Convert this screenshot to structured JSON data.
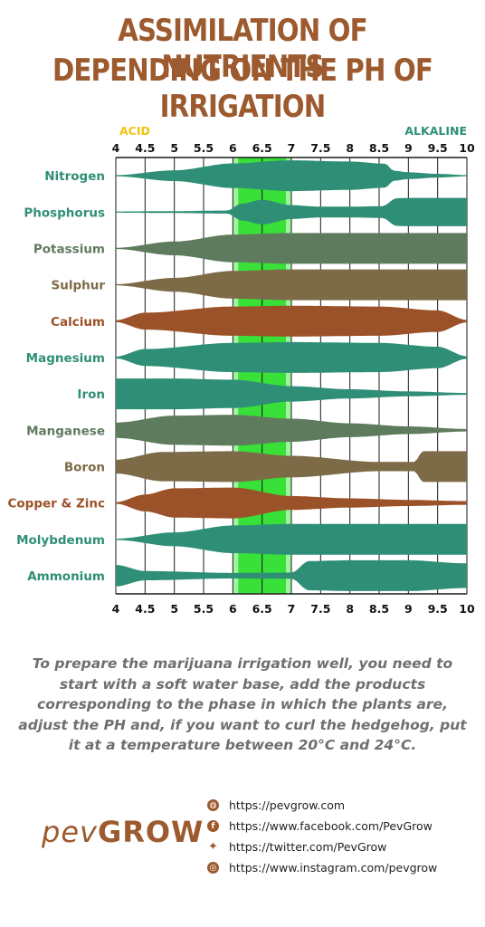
{
  "title_line1": "ASSIMILATION OF NUTRIENTS",
  "title_line2": "DEPENDING ON THE PH OF IRRIGATION",
  "chart_data": {
    "type": "area",
    "x_label_left": "ACID",
    "x_label_right": "ALKALINE",
    "xlim": [
      4,
      10
    ],
    "ticks": [
      "4",
      "4.5",
      "5",
      "5.5",
      "6",
      "6.5",
      "7",
      "7.5",
      "8",
      "8.5",
      "9",
      "9.5",
      "10"
    ],
    "highlight_range": [
      6,
      7
    ],
    "nutrients": [
      {
        "name": "Nitrogen",
        "color": "#2f8f76",
        "label_color": "#2f8f76",
        "x": [
          4,
          5,
          6,
          7,
          8,
          8.6,
          8.75,
          9,
          9.5,
          10
        ],
        "w": [
          0.04,
          0.35,
          0.8,
          1,
          0.92,
          0.78,
          0.33,
          0.22,
          0.12,
          0.04
        ]
      },
      {
        "name": "Phosphorus",
        "color": "#2f8f76",
        "label_color": "#2f8f76",
        "x": [
          4,
          5,
          5.9,
          6.15,
          6.5,
          7,
          7.5,
          8,
          8.55,
          8.8,
          9,
          10
        ],
        "w": [
          0.04,
          0.06,
          0.1,
          0.55,
          0.8,
          0.45,
          0.35,
          0.35,
          0.38,
          0.9,
          0.92,
          0.92
        ]
      },
      {
        "name": "Potassium",
        "color": "#5f7b5e",
        "label_color": "#5f7b5e",
        "x": [
          4,
          5,
          6,
          7,
          8,
          9,
          10
        ],
        "w": [
          0.04,
          0.45,
          0.9,
          1,
          1,
          1,
          1
        ]
      },
      {
        "name": "Sulphur",
        "color": "#7d6a47",
        "label_color": "#7d6a47",
        "x": [
          4,
          5,
          6,
          7,
          8,
          9,
          10
        ],
        "w": [
          0.04,
          0.45,
          0.9,
          1,
          1,
          1,
          1
        ]
      },
      {
        "name": "Calcium",
        "color": "#9c5228",
        "label_color": "#9c5228",
        "x": [
          4,
          4.5,
          6,
          7,
          8.5,
          9.5,
          10
        ],
        "w": [
          0.06,
          0.55,
          0.95,
          1,
          0.95,
          0.7,
          0.08
        ]
      },
      {
        "name": "Magnesium",
        "color": "#2f8f76",
        "label_color": "#2f8f76",
        "x": [
          4,
          4.5,
          6,
          7,
          8.5,
          9.5,
          10
        ],
        "w": [
          0.06,
          0.55,
          0.95,
          1,
          0.95,
          0.7,
          0.08
        ]
      },
      {
        "name": "Iron",
        "color": "#2f8f76",
        "label_color": "#2f8f76",
        "x": [
          4,
          5,
          6,
          7,
          8,
          9,
          10
        ],
        "w": [
          1,
          1,
          0.92,
          0.5,
          0.3,
          0.16,
          0.06
        ]
      },
      {
        "name": "Manganese",
        "color": "#5f7b5e",
        "label_color": "#5f7b5e",
        "x": [
          4,
          5,
          6,
          7,
          8,
          9,
          10
        ],
        "w": [
          0.5,
          0.95,
          1,
          0.75,
          0.45,
          0.25,
          0.08
        ]
      },
      {
        "name": "Boron",
        "color": "#7d6a47",
        "label_color": "#7d6a47",
        "x": [
          4,
          4.8,
          6,
          7,
          8.5,
          9.1,
          9.25,
          10
        ],
        "w": [
          0.45,
          0.95,
          1,
          0.7,
          0.3,
          0.3,
          1,
          1
        ]
      },
      {
        "name": "Copper & Zinc",
        "color": "#9c5228",
        "label_color": "#9c5228",
        "x": [
          4,
          4.5,
          5,
          6,
          7,
          8,
          9,
          10
        ],
        "w": [
          0.05,
          0.55,
          0.95,
          1,
          0.45,
          0.3,
          0.2,
          0.12
        ]
      },
      {
        "name": "Molybdenum",
        "color": "#2f8f76",
        "label_color": "#2f8f76",
        "x": [
          4,
          5,
          6,
          7,
          8,
          9,
          10
        ],
        "w": [
          0.04,
          0.45,
          0.9,
          1,
          1,
          1,
          1
        ]
      },
      {
        "name": "Ammonium",
        "color": "#2f8f76",
        "label_color": "#2f8f76",
        "x": [
          4,
          4.5,
          6,
          7,
          7.3,
          8,
          9,
          10
        ],
        "w": [
          0.7,
          0.3,
          0.18,
          0.2,
          0.95,
          1,
          1,
          0.8
        ]
      }
    ]
  },
  "note": "To prepare the marijuana irrigation well, you need to start with a soft water base, add the products corresponding to the phase in which the plants are, adjust the PH and, if you want to curl the hedgehog, put it at a temperature between 20°C and 24°C.",
  "logo_part1": "pev",
  "logo_part2": "GROW",
  "links": [
    {
      "icon": "globe-icon",
      "text": "https://pevgrow.com"
    },
    {
      "icon": "facebook-icon",
      "text": "https://www.facebook.com/PevGrow"
    },
    {
      "icon": "twitter-icon",
      "text": "https://twitter.com/PevGrow"
    },
    {
      "icon": "instagram-icon",
      "text": "https://www.instagram.com/pevgrow"
    }
  ]
}
